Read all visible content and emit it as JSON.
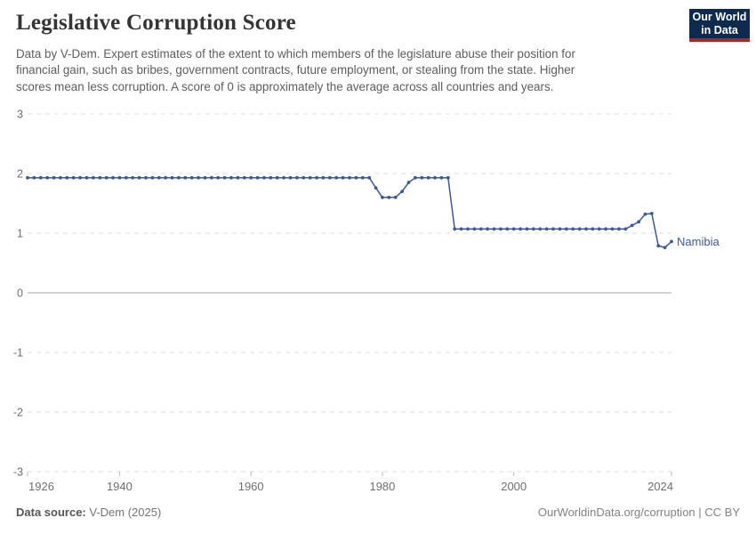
{
  "header": {
    "title": "Legislative Corruption Score",
    "subtitle_lines": [
      "Data by V-Dem. Expert estimates of the extent to which members of the legislature abuse their position for",
      "financial gain, such as bribes, government contracts, future employment, or stealing from the state. Higher",
      "scores mean less corruption. A score of 0 is approximately the average across all countries and years."
    ]
  },
  "logo": {
    "line1": "Our World",
    "line2": "in Data",
    "bg_color": "#0e2a4e",
    "accent_color": "#a92c22"
  },
  "chart_data": {
    "type": "line",
    "title": "Legislative Corruption Score",
    "xlabel": "",
    "ylabel": "",
    "xlim": [
      1926,
      2024
    ],
    "ylim": [
      -3,
      3
    ],
    "x_ticks": [
      1926,
      1940,
      1960,
      1980,
      2000,
      2024
    ],
    "y_ticks": [
      3,
      2,
      1,
      0,
      -1,
      -2,
      -3
    ],
    "grid": "horizontal dashed lines, solid line at zero, no vertical gridlines",
    "legend_position": "end-of-line label",
    "colors": {
      "line": "#3d5a96",
      "grid": "#dcdcdc",
      "zero_line": "#a5a5a5",
      "axis_text": "#6f6f6f",
      "tick_mark": "#b8b8b8"
    },
    "series": [
      {
        "name": "Namibia",
        "color": "#3d5a96",
        "points": [
          [
            1926,
            1.93
          ],
          [
            1927,
            1.93
          ],
          [
            1928,
            1.93
          ],
          [
            1929,
            1.93
          ],
          [
            1930,
            1.93
          ],
          [
            1931,
            1.93
          ],
          [
            1932,
            1.93
          ],
          [
            1933,
            1.93
          ],
          [
            1934,
            1.93
          ],
          [
            1935,
            1.93
          ],
          [
            1936,
            1.93
          ],
          [
            1937,
            1.93
          ],
          [
            1938,
            1.93
          ],
          [
            1939,
            1.93
          ],
          [
            1940,
            1.93
          ],
          [
            1941,
            1.93
          ],
          [
            1942,
            1.93
          ],
          [
            1943,
            1.93
          ],
          [
            1944,
            1.93
          ],
          [
            1945,
            1.93
          ],
          [
            1946,
            1.93
          ],
          [
            1947,
            1.93
          ],
          [
            1948,
            1.93
          ],
          [
            1949,
            1.93
          ],
          [
            1950,
            1.93
          ],
          [
            1951,
            1.93
          ],
          [
            1952,
            1.93
          ],
          [
            1953,
            1.93
          ],
          [
            1954,
            1.93
          ],
          [
            1955,
            1.93
          ],
          [
            1956,
            1.93
          ],
          [
            1957,
            1.93
          ],
          [
            1958,
            1.93
          ],
          [
            1959,
            1.93
          ],
          [
            1960,
            1.93
          ],
          [
            1961,
            1.93
          ],
          [
            1962,
            1.93
          ],
          [
            1963,
            1.93
          ],
          [
            1964,
            1.93
          ],
          [
            1965,
            1.93
          ],
          [
            1966,
            1.93
          ],
          [
            1967,
            1.93
          ],
          [
            1968,
            1.93
          ],
          [
            1969,
            1.93
          ],
          [
            1970,
            1.93
          ],
          [
            1971,
            1.93
          ],
          [
            1972,
            1.93
          ],
          [
            1973,
            1.93
          ],
          [
            1974,
            1.93
          ],
          [
            1975,
            1.93
          ],
          [
            1976,
            1.93
          ],
          [
            1977,
            1.93
          ],
          [
            1978,
            1.93
          ],
          [
            1979,
            1.76
          ],
          [
            1980,
            1.6
          ],
          [
            1981,
            1.6
          ],
          [
            1982,
            1.6
          ],
          [
            1983,
            1.7
          ],
          [
            1984,
            1.85
          ],
          [
            1985,
            1.93
          ],
          [
            1986,
            1.93
          ],
          [
            1987,
            1.93
          ],
          [
            1988,
            1.93
          ],
          [
            1989,
            1.93
          ],
          [
            1990,
            1.93
          ],
          [
            1991,
            1.07
          ],
          [
            1992,
            1.07
          ],
          [
            1993,
            1.07
          ],
          [
            1994,
            1.07
          ],
          [
            1995,
            1.07
          ],
          [
            1996,
            1.07
          ],
          [
            1997,
            1.07
          ],
          [
            1998,
            1.07
          ],
          [
            1999,
            1.07
          ],
          [
            2000,
            1.07
          ],
          [
            2001,
            1.07
          ],
          [
            2002,
            1.07
          ],
          [
            2003,
            1.07
          ],
          [
            2004,
            1.07
          ],
          [
            2005,
            1.07
          ],
          [
            2006,
            1.07
          ],
          [
            2007,
            1.07
          ],
          [
            2008,
            1.07
          ],
          [
            2009,
            1.07
          ],
          [
            2010,
            1.07
          ],
          [
            2011,
            1.07
          ],
          [
            2012,
            1.07
          ],
          [
            2013,
            1.07
          ],
          [
            2014,
            1.07
          ],
          [
            2015,
            1.07
          ],
          [
            2016,
            1.07
          ],
          [
            2017,
            1.07
          ],
          [
            2018,
            1.13
          ],
          [
            2019,
            1.19
          ],
          [
            2020,
            1.32
          ],
          [
            2021,
            1.33
          ],
          [
            2022,
            0.79
          ],
          [
            2023,
            0.76
          ],
          [
            2024,
            0.86
          ]
        ]
      }
    ]
  },
  "footer": {
    "source_label": "Data source:",
    "source_value": " V-Dem (2025)",
    "link": "OurWorldinData.org/corruption | CC BY"
  }
}
